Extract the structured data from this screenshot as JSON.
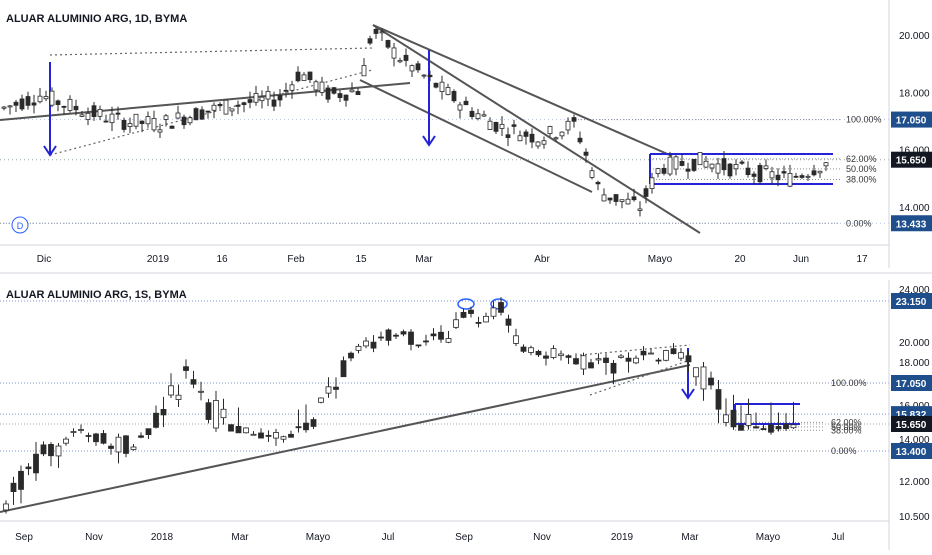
{
  "colors": {
    "up_candle": "#ffffff",
    "down_candle": "#2a2a2a",
    "candle_outline": "#2a2a2a",
    "trendline": "#555555",
    "arrow": "#2424d6",
    "channel": "#2424d6",
    "fib_line": "#8f8f8f",
    "price_badge": "#1f4e8c",
    "last_price_badge": "#131722",
    "axis_text": "#131722",
    "divider": "#d1d4dc"
  },
  "chart_data": [
    {
      "type": "candlestick",
      "title": "ALUAR ALUMINIO ARG, 1D, BYMA",
      "timeframe": "1D",
      "ylim": [
        13.0,
        21.2
      ],
      "ticks": [
        "14.000",
        "16.000",
        "18.000",
        "20.000"
      ],
      "tick_values": [
        14,
        16,
        18,
        20
      ],
      "x_labels": [
        "Dic",
        "2019",
        "16",
        "Feb",
        "15",
        "Mar",
        "Abr",
        "Mayo",
        "20",
        "Jun",
        "17"
      ],
      "price_badges": [
        {
          "label": "17.050",
          "value": 17.05,
          "style": "blue"
        },
        {
          "label": "15.650",
          "value": 15.65,
          "style": "dark"
        },
        {
          "label": "13.433",
          "value": 13.433,
          "style": "blue"
        }
      ],
      "fib_levels": [
        {
          "label": "100.00%",
          "value": 17.05
        },
        {
          "label": "62.00%",
          "value": 15.68
        },
        {
          "label": "50.00%",
          "value": 15.33
        },
        {
          "label": "38.00%",
          "value": 14.96
        },
        {
          "label": "0.00%",
          "value": 13.433
        }
      ],
      "candles": [],
      "markers": [
        {
          "label": "D"
        }
      ]
    },
    {
      "type": "candlestick",
      "title": "ALUAR ALUMINIO ARG, 1S, BYMA",
      "timeframe": "1S",
      "ylim": [
        10.4,
        24.4
      ],
      "ticks": [
        "10.500",
        "12.000",
        "14.000",
        "16.000",
        "18.000",
        "20.000",
        "24.000"
      ],
      "tick_values": [
        10.5,
        12,
        14,
        16,
        18,
        20,
        24
      ],
      "x_labels": [
        "Sep",
        "Nov",
        "2018",
        "Mar",
        "Mayo",
        "Jul",
        "Sep",
        "Nov",
        "2019",
        "Mar",
        "Mayo",
        "Jul"
      ],
      "price_badges": [
        {
          "label": "23.150",
          "value": 23.15,
          "style": "blue"
        },
        {
          "label": "17.050",
          "value": 17.05,
          "style": "blue"
        },
        {
          "label": "15.832",
          "value": 15.832,
          "style": "blue"
        },
        {
          "label": "15.650",
          "value": 15.65,
          "style": "dark"
        },
        {
          "label": "13.400",
          "value": 13.4,
          "style": "blue"
        }
      ],
      "fib_levels": [
        {
          "label": "100.00%",
          "value": 17.05
        },
        {
          "label": "62.00%",
          "value": 15.68
        },
        {
          "label": "50.00%",
          "value": 15.33
        },
        {
          "label": "38.00%",
          "value": 14.96
        },
        {
          "label": "0.00%",
          "value": 13.4
        }
      ],
      "candles": []
    }
  ]
}
